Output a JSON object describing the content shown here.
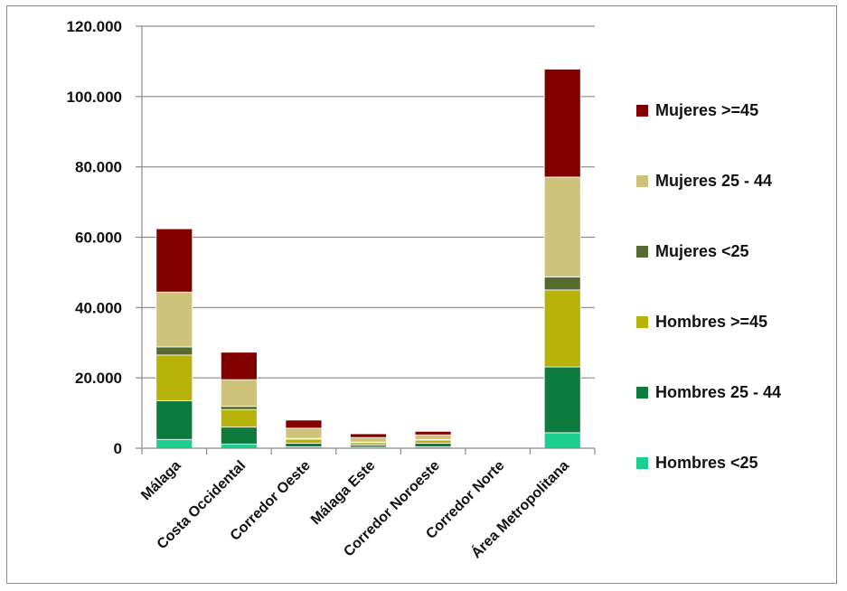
{
  "chart_data": {
    "type": "bar",
    "stacked": true,
    "title": "",
    "xlabel": "",
    "ylabel": "",
    "ylim": [
      0,
      120000
    ],
    "y_ticks": [
      0,
      20000,
      40000,
      60000,
      80000,
      100000,
      120000
    ],
    "y_tick_labels": [
      "0",
      "20.000",
      "40.000",
      "60.000",
      "80.000",
      "100.000",
      "120.000"
    ],
    "grid": true,
    "legend_position": "right",
    "categories": [
      "Málaga",
      "Costa Occidental",
      "Corredor Oeste",
      "Málaga Este",
      "Corredor Noroeste",
      "Corredor Norte",
      "Área Metropolitana"
    ],
    "series": [
      {
        "name": "Hombres <25",
        "color": "#1ccf8f",
        "values": [
          2500,
          1200,
          400,
          300,
          400,
          60,
          4400
        ]
      },
      {
        "name": "Hombres 25 - 44",
        "color": "#0d7a3e",
        "values": [
          11000,
          4800,
          1000,
          600,
          1000,
          150,
          18700
        ]
      },
      {
        "name": "Hombres >=45",
        "color": "#b7b30a",
        "values": [
          13000,
          5000,
          1200,
          700,
          900,
          200,
          21900
        ]
      },
      {
        "name": "Mujeres <25",
        "color": "#556b2f",
        "values": [
          2300,
          900,
          200,
          150,
          200,
          40,
          3700
        ]
      },
      {
        "name": "Mujeres 25 - 44",
        "color": "#cfc27a",
        "values": [
          15600,
          7600,
          2900,
          1300,
          1300,
          200,
          28400
        ]
      },
      {
        "name": "Mujeres >=45",
        "color": "#800000",
        "values": [
          18000,
          7800,
          2300,
          1050,
          1000,
          150,
          30700
        ]
      }
    ]
  }
}
